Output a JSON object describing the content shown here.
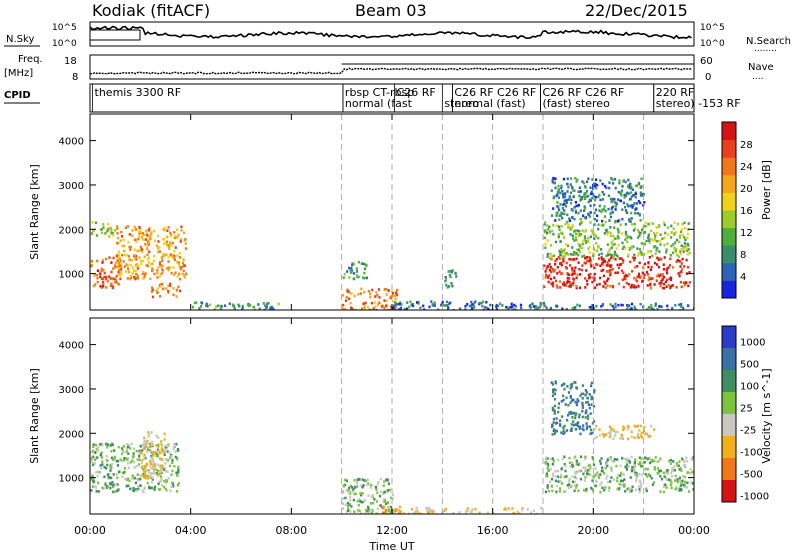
{
  "header": {
    "station": "Kodiak (fitACF)",
    "beam": "Beam 03",
    "date": "22/Dec/2015"
  },
  "strip_labels": {
    "nsky": "N.Sky",
    "nsearch": "N.Search",
    "nsearch_dots": "........",
    "freq": "Freq.",
    "freq_unit": "[MHz]",
    "nave": "Nave",
    "nave_dots": "....",
    "cpid": "CPID"
  },
  "strip_ticks": {
    "nsky_left_top": "10^5",
    "nsky_left_bottom": "10^0",
    "nsky_right_top": "10^5",
    "nsky_right_bottom": "10^0",
    "freq_top": "18",
    "freq_bottom": "8",
    "nave_top": "60",
    "nave_bottom": "0"
  },
  "cpid_labels": [
    {
      "text": "themis 3300 RF",
      "hour": 0.1,
      "row": 0
    },
    {
      "text": "rbsp CT-rbsp",
      "hour": 10.05,
      "row": 0
    },
    {
      "text": "normal (fast",
      "hour": 10.05,
      "row": 1
    },
    {
      "text": "C26 RF",
      "hour": 12.1,
      "row": 0
    },
    {
      "text": "stereo",
      "hour": 14.0,
      "row": 1
    },
    {
      "text": "C26 RF C26 RF",
      "hour": 14.4,
      "row": 0
    },
    {
      "text": "normal (fast)",
      "hour": 14.4,
      "row": 1
    },
    {
      "text": "C26 RF C26 RF",
      "hour": 17.9,
      "row": 0
    },
    {
      "text": "(fast) stereo",
      "hour": 17.9,
      "row": 1
    },
    {
      "text": "220 RF",
      "hour": 22.4,
      "row": 0
    },
    {
      "text": "stereo) -153 RF",
      "hour": 22.4,
      "row": 1
    }
  ],
  "panel_power": {
    "ylabel": "Slant Range [km]",
    "yticks": [
      "1000",
      "2000",
      "3000",
      "4000"
    ],
    "colorbar_label": "Power [dB]",
    "colorbar_ticks": [
      "4",
      "8",
      "12",
      "16",
      "20",
      "24",
      "28"
    ],
    "colors": [
      "#1a24e0",
      "#2d63b8",
      "#3a8c6e",
      "#4fae3c",
      "#9ccc2a",
      "#f0d21a",
      "#f5a71a",
      "#f07818",
      "#e8401a",
      "#d41414"
    ]
  },
  "panel_velocity": {
    "ylabel": "Slant Range [km]",
    "yticks": [
      "1000",
      "2000",
      "3000",
      "4000"
    ],
    "colorbar_label": "Velocity [m s^-1]",
    "colorbar_ticks": [
      "1000",
      "500",
      "100",
      "25",
      "-25",
      "-100",
      "-500",
      "-1000"
    ],
    "colors": [
      "#2a3cc8",
      "#3a70a8",
      "#3e8e62",
      "#7cc43c",
      "#c8c8c0",
      "#f0b01a",
      "#f07818",
      "#d41414"
    ]
  },
  "xaxis": {
    "label": "Time UT",
    "ticks": [
      "00:00",
      "04:00",
      "08:00",
      "12:00",
      "16:00",
      "20:00",
      "00:00"
    ]
  },
  "chart_data": {
    "type": "heatmap",
    "title": "Kodiak (fitACF)  Beam 03  22/Dec/2015",
    "xlabel": "Time UT",
    "ylabel": "Slant Range [km]",
    "xlim_hours": [
      0,
      24
    ],
    "ylim_km": [
      180,
      4600
    ],
    "grid": false,
    "mode_change_hours": [
      10.0,
      12.0,
      14.0,
      16.0,
      18.0,
      20.0,
      22.0
    ],
    "panels": [
      {
        "name": "Power [dB]",
        "range": [
          0,
          30
        ],
        "regions": [
          {
            "t0": 0.0,
            "t1": 1.2,
            "r0": 700,
            "r1": 1400,
            "level": 24
          },
          {
            "t0": 0.0,
            "t1": 1.0,
            "r0": 1800,
            "r1": 2200,
            "level": 14
          },
          {
            "t0": 1.0,
            "t1": 3.8,
            "r0": 900,
            "r1": 2100,
            "level": 20
          },
          {
            "t0": 2.4,
            "t1": 3.6,
            "r0": 500,
            "r1": 800,
            "level": 22
          },
          {
            "t0": 4.0,
            "t1": 7.5,
            "r0": 200,
            "r1": 400,
            "level": 8
          },
          {
            "t0": 10.0,
            "t1": 12.2,
            "r0": 180,
            "r1": 700,
            "level": 22
          },
          {
            "t0": 10.0,
            "t1": 11.0,
            "r0": 900,
            "r1": 1300,
            "level": 8
          },
          {
            "t0": 12.0,
            "t1": 18.0,
            "r0": 180,
            "r1": 400,
            "level": 6
          },
          {
            "t0": 14.0,
            "t1": 14.6,
            "r0": 700,
            "r1": 1100,
            "level": 10
          },
          {
            "t0": 18.0,
            "t1": 23.8,
            "r0": 700,
            "r1": 1400,
            "level": 28
          },
          {
            "t0": 18.0,
            "t1": 23.8,
            "r0": 1400,
            "r1": 2200,
            "level": 12
          },
          {
            "t0": 18.3,
            "t1": 22.0,
            "r0": 2200,
            "r1": 3200,
            "level": 6
          },
          {
            "t0": 18.0,
            "t1": 24.0,
            "r0": 180,
            "r1": 350,
            "level": 6
          }
        ]
      },
      {
        "name": "Velocity [m s^-1]",
        "range": [
          -1000,
          1000
        ],
        "regions": [
          {
            "t0": 0.0,
            "t1": 3.5,
            "r0": 700,
            "r1": 1800,
            "value": 0
          },
          {
            "t0": 2.0,
            "t1": 3.0,
            "r0": 1000,
            "r1": 2100,
            "value": -100
          },
          {
            "t0": 10.0,
            "t1": 12.0,
            "r0": 180,
            "r1": 1000,
            "value": 0
          },
          {
            "t0": 11.5,
            "t1": 12.5,
            "r0": 180,
            "r1": 400,
            "value": -500
          },
          {
            "t0": 12.0,
            "t1": 18.0,
            "r0": 180,
            "r1": 350,
            "value": -100
          },
          {
            "t0": 18.0,
            "t1": 24.0,
            "r0": 700,
            "r1": 1500,
            "value": 0
          },
          {
            "t0": 18.3,
            "t1": 20.0,
            "r0": 2000,
            "r1": 3200,
            "value": 100
          },
          {
            "t0": 20.0,
            "t1": 22.5,
            "r0": 1900,
            "r1": 2200,
            "value": -100
          }
        ]
      }
    ]
  }
}
